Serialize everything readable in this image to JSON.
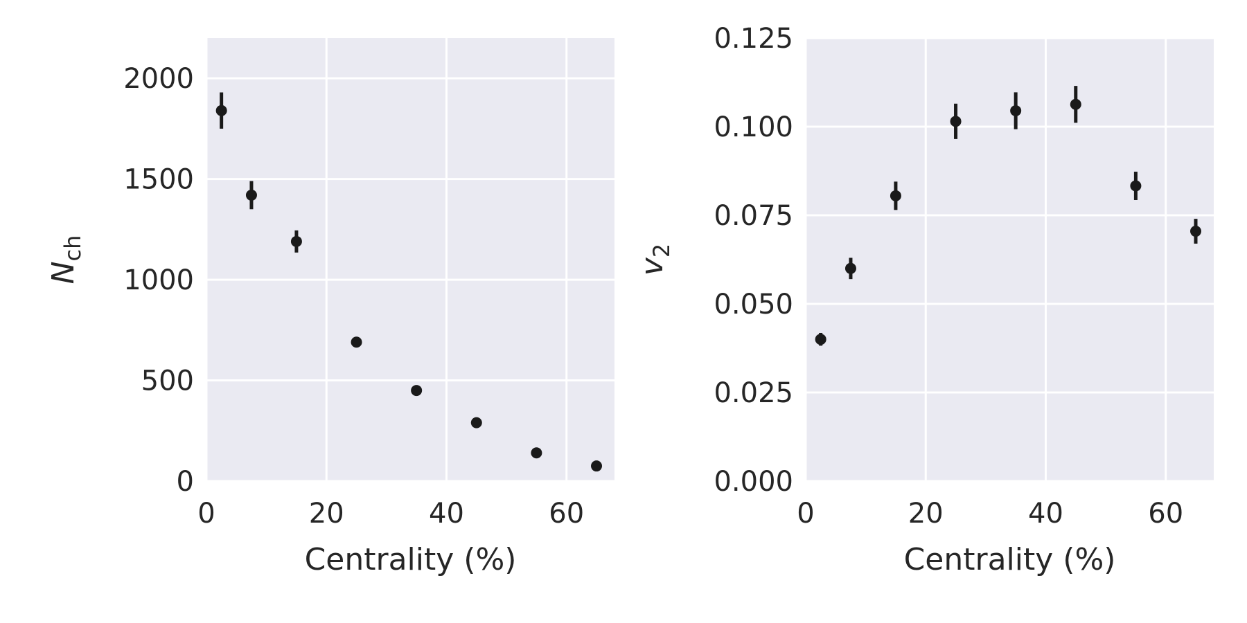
{
  "chart_data": [
    {
      "type": "scatter",
      "title": "",
      "xlabel": "Centrality (%)",
      "ylabel": {
        "base": "N",
        "sub": "ch",
        "italic_base": true
      },
      "xlim": [
        0,
        68
      ],
      "ylim": [
        0,
        2200
      ],
      "xticks": [
        0,
        20,
        40,
        60
      ],
      "yticks": [
        0,
        500,
        1000,
        1500,
        2000
      ],
      "xtick_labels": [
        "0",
        "20",
        "40",
        "60"
      ],
      "ytick_labels": [
        "0",
        "500",
        "1000",
        "1500",
        "2000"
      ],
      "grid": true,
      "series": [
        {
          "x": [
            2.5,
            7.5,
            15,
            25,
            35,
            45,
            55,
            65
          ],
          "y": [
            1840,
            1420,
            1190,
            690,
            450,
            290,
            140,
            75
          ],
          "yerr": [
            90,
            70,
            55,
            25,
            12,
            10,
            8,
            5
          ],
          "color": "#1a1a1a"
        }
      ]
    },
    {
      "type": "scatter",
      "title": "",
      "xlabel": "Centrality (%)",
      "ylabel": {
        "base": "v",
        "sub": "2",
        "italic_base": true
      },
      "xlim": [
        0,
        68
      ],
      "ylim": [
        0,
        0.125
      ],
      "xticks": [
        0,
        20,
        40,
        60
      ],
      "yticks": [
        0,
        0.025,
        0.05,
        0.075,
        0.1,
        0.125
      ],
      "xtick_labels": [
        "0",
        "20",
        "40",
        "60"
      ],
      "ytick_labels": [
        "0.000",
        "0.025",
        "0.050",
        "0.075",
        "0.100",
        "0.125"
      ],
      "grid": true,
      "series": [
        {
          "x": [
            2.5,
            7.5,
            15,
            25,
            35,
            45,
            55,
            65
          ],
          "y": [
            0.04,
            0.06,
            0.0805,
            0.1015,
            0.1045,
            0.1063,
            0.0833,
            0.0705
          ],
          "yerr": [
            0.0018,
            0.003,
            0.004,
            0.005,
            0.0052,
            0.0052,
            0.004,
            0.0035
          ],
          "color": "#1a1a1a"
        }
      ]
    }
  ]
}
